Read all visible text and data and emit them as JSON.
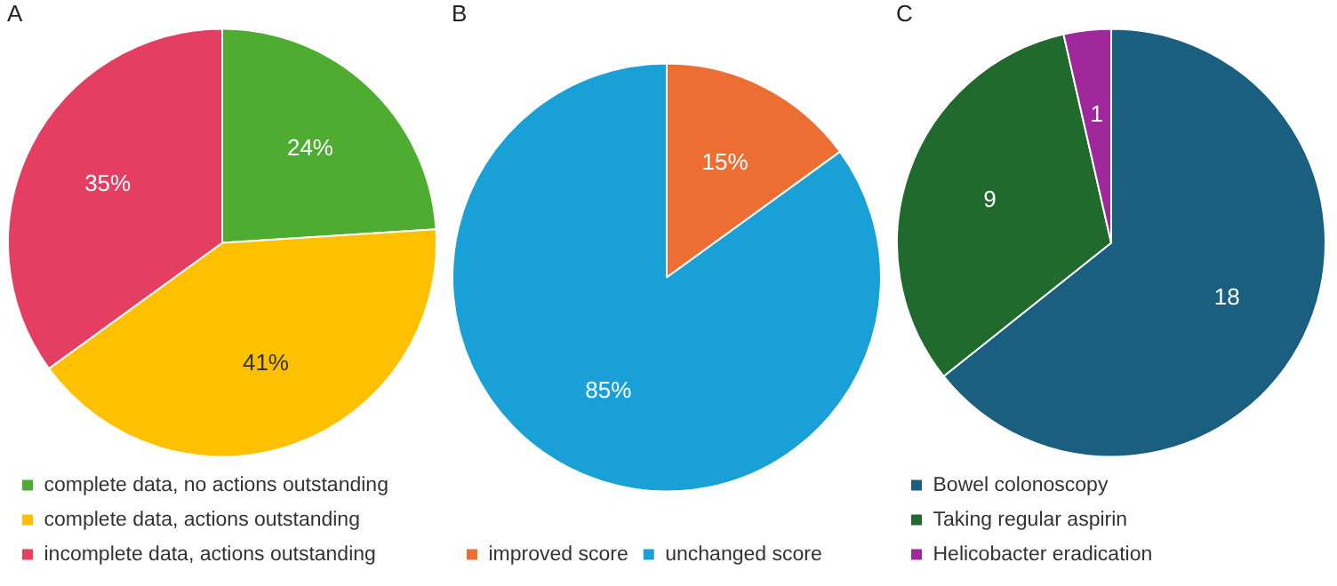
{
  "chart_data": [
    {
      "type": "pie",
      "title": "A",
      "categories": [
        "complete data, no actions outstanding",
        "complete data, actions outstanding",
        "incomplete data, actions outstanding"
      ],
      "values": [
        24,
        41,
        35
      ],
      "colors": [
        "#4eac31",
        "#ffc000",
        "#e43f62"
      ],
      "value_labels": [
        "24%",
        "41%",
        "35%"
      ],
      "legend": "bottom"
    },
    {
      "type": "pie",
      "title": "B",
      "categories": [
        "improved score",
        "unchanged score"
      ],
      "values": [
        15,
        85
      ],
      "colors": [
        "#ec6e33",
        "#18a0d7"
      ],
      "value_labels": [
        "15%",
        "85%"
      ],
      "legend": "bottom"
    },
    {
      "type": "pie",
      "title": "C",
      "categories": [
        "Bowel colonoscopy",
        "Taking regular aspirin",
        "Helicobacter eradication"
      ],
      "values": [
        18,
        9,
        1
      ],
      "colors": [
        "#1b5f80",
        "#1f6a2c",
        "#a0289c"
      ],
      "data_labels": true,
      "legend": "bottom"
    }
  ]
}
